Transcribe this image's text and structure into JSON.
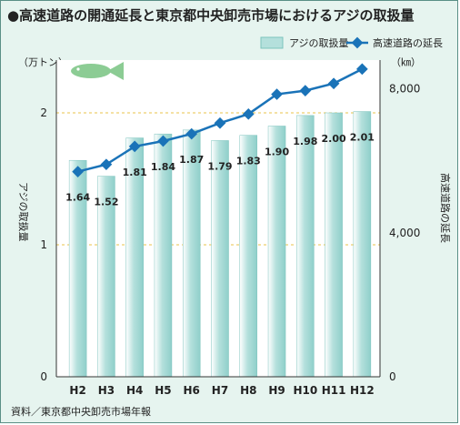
{
  "header": {
    "title": "●高速道路の開通延長と東京都中央卸売市場におけるアジの取扱量"
  },
  "legend": {
    "bar_label": "アジの取扱量",
    "line_label": "高速道路の延長"
  },
  "axes": {
    "left_unit": "（万トン）",
    "right_unit": "（㎞）",
    "left_label": "アジの取扱量",
    "right_label": "高速道路の延長",
    "left_ticks": [
      "0",
      "1",
      "2"
    ],
    "right_ticks": [
      "0",
      "4,000",
      "8,000"
    ]
  },
  "source": "資料／東京都中央卸売市場年報",
  "fish_icon": "fish-icon",
  "colors": {
    "bar": "#b4e0dc",
    "bar_edge": "#7cc3bd",
    "line": "#1a73b8",
    "background": "#e6f4ef",
    "plot": "#ffffff",
    "refline": "#e8c34a"
  },
  "chart_data": {
    "type": "bar+line",
    "categories": [
      "H2",
      "H3",
      "H4",
      "H5",
      "H6",
      "H7",
      "H8",
      "H9",
      "H10",
      "H11",
      "H12"
    ],
    "series": [
      {
        "name": "アジの取扱量",
        "type": "bar",
        "axis": "left",
        "unit": "万トン",
        "values": [
          1.64,
          1.52,
          1.81,
          1.84,
          1.87,
          1.79,
          1.83,
          1.9,
          1.98,
          2.0,
          2.01
        ],
        "labels": [
          "1.64",
          "1.52",
          "1.81",
          "1.84",
          "1.87",
          "1.79",
          "1.83",
          "1.90",
          "1.98",
          "2.00",
          "2.01"
        ]
      },
      {
        "name": "高速道路の延長",
        "type": "line",
        "axis": "right",
        "unit": "km",
        "values": [
          5700,
          5900,
          6400,
          6550,
          6750,
          7050,
          7300,
          7850,
          7950,
          8150,
          8550
        ]
      }
    ],
    "ylim_left": [
      0,
      2.4
    ],
    "ylim_right": [
      0,
      8800
    ],
    "ref_lines_left": [
      1,
      2
    ]
  }
}
